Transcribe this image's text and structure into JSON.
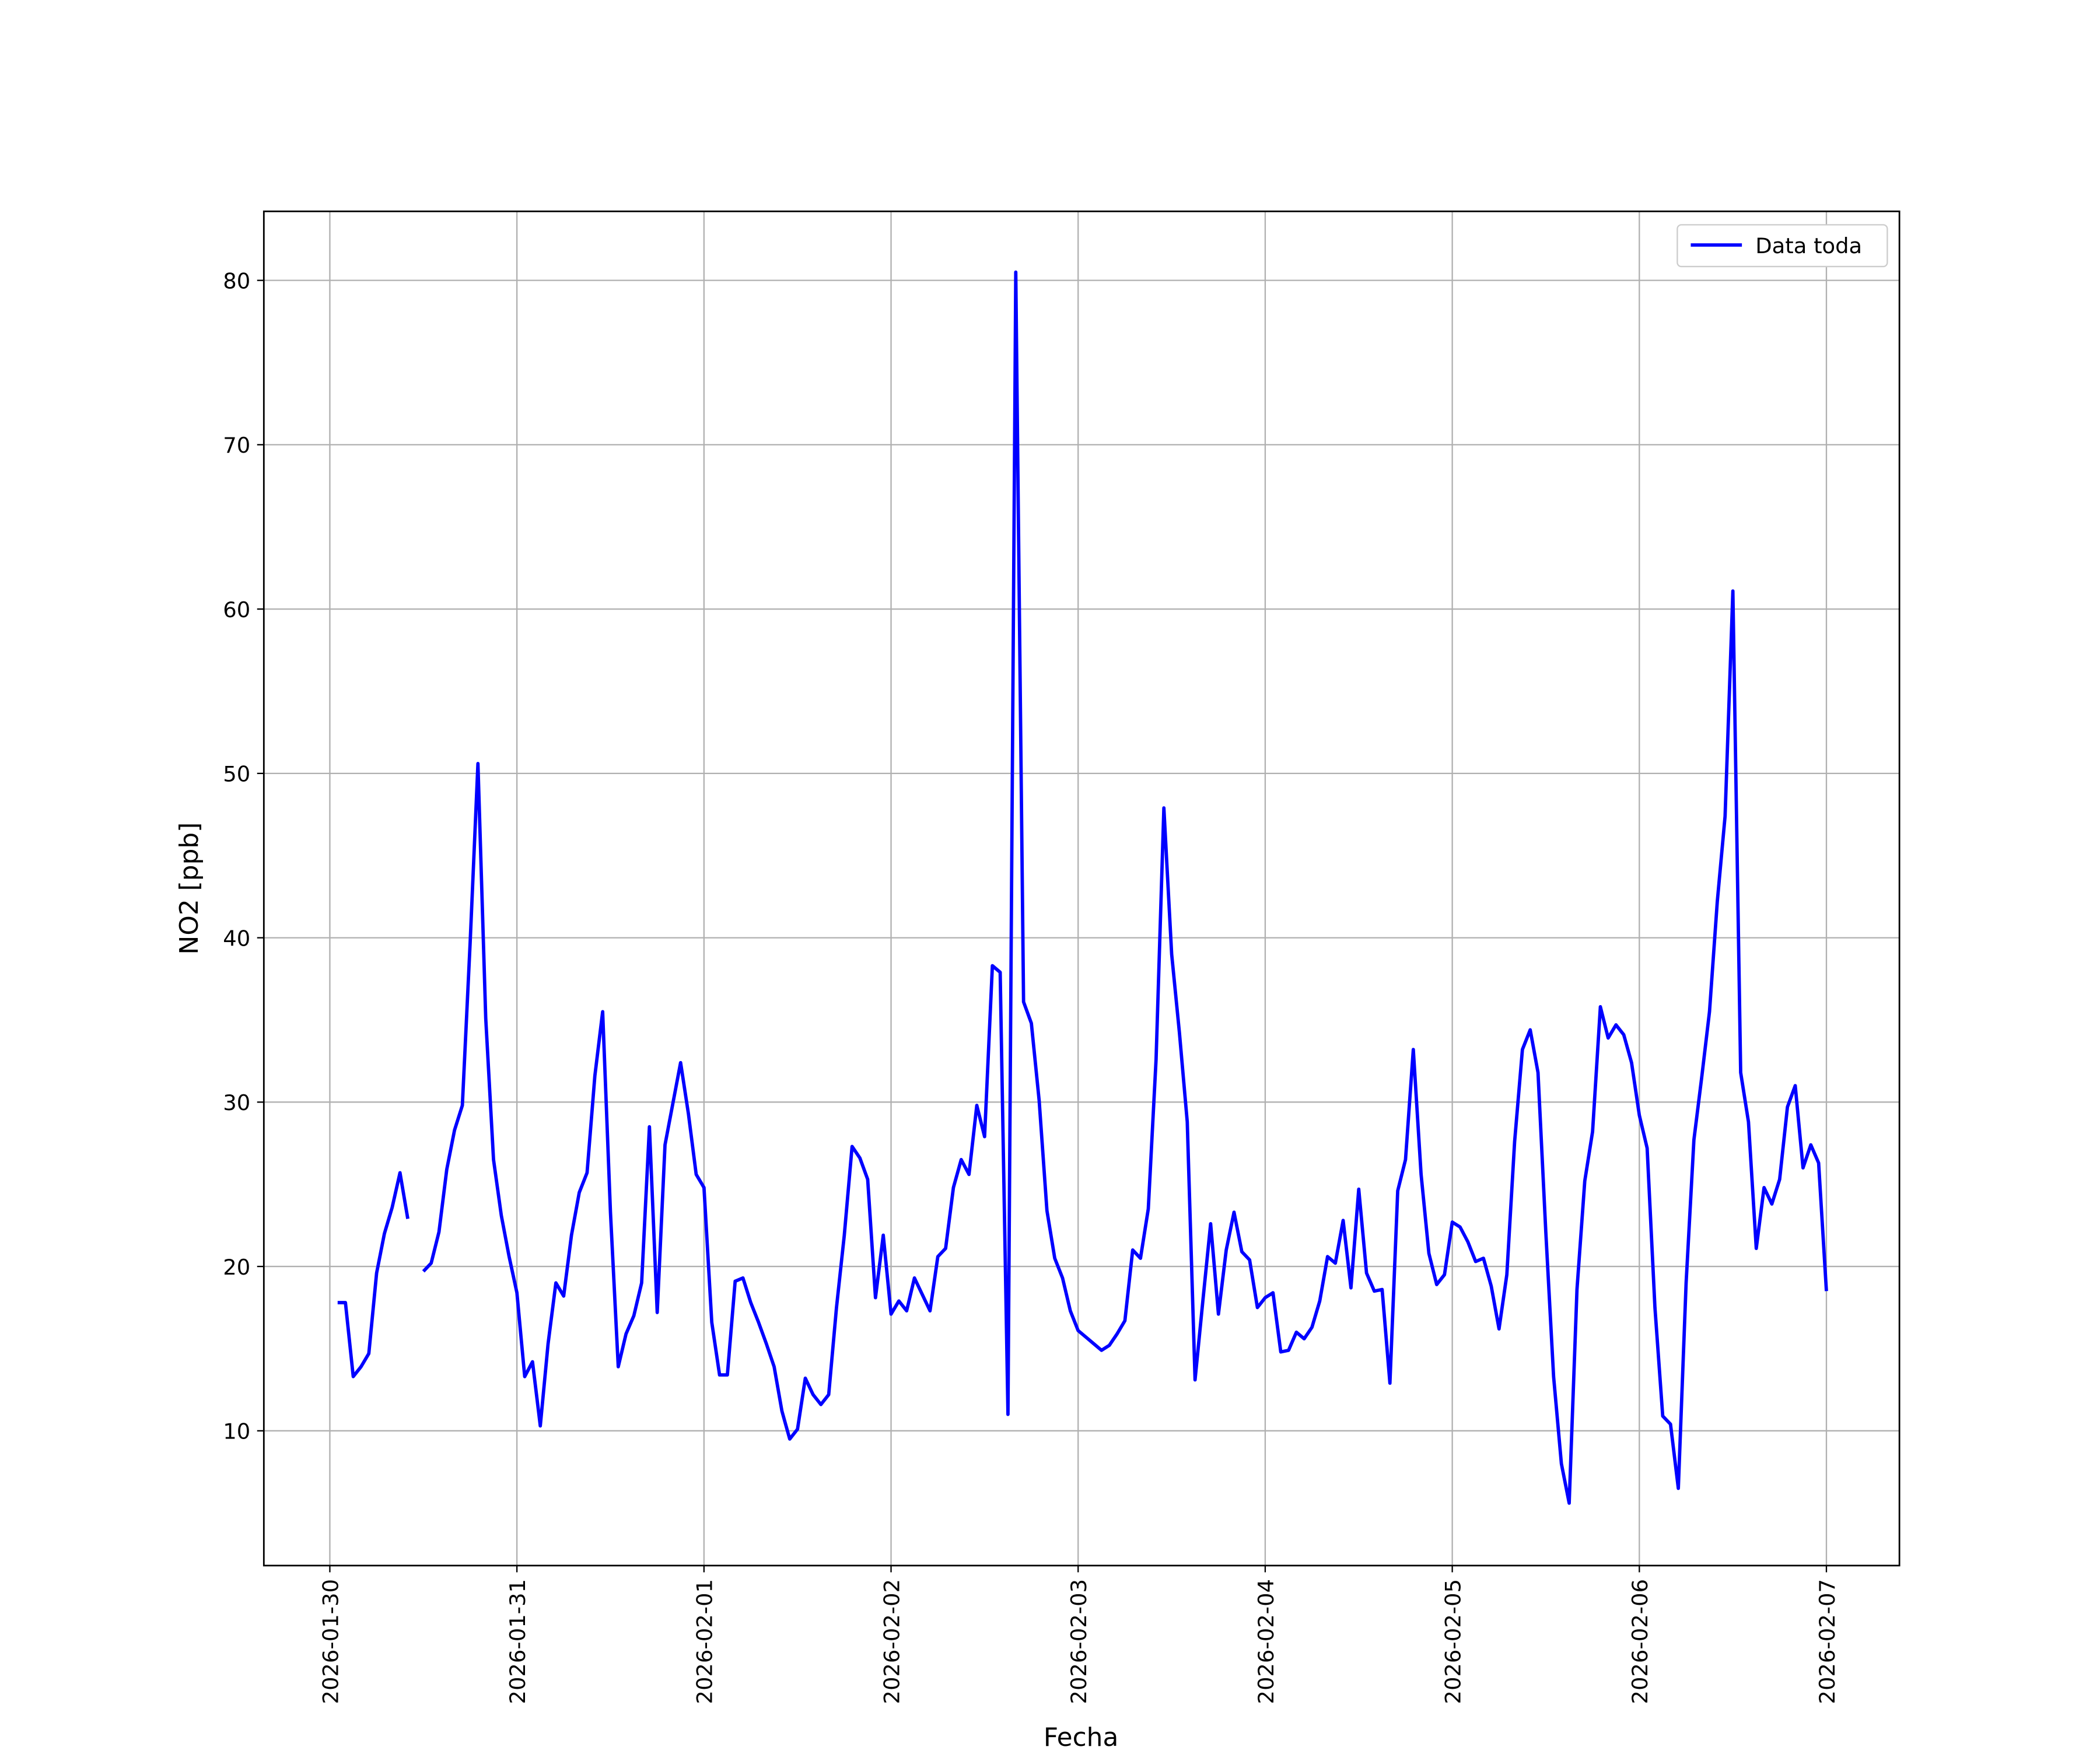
{
  "chart_data": {
    "type": "line",
    "x_label": "Fecha",
    "y_label": "NO2 [ppb]",
    "xlim": [
      "2026-01-29 15:32",
      "2026-02-07 09:22"
    ],
    "xticks": [
      "2026-01-30",
      "2026-01-31",
      "2026-02-01",
      "2026-02-02",
      "2026-02-03",
      "2026-02-04",
      "2026-02-05",
      "2026-02-06",
      "2026-02-07"
    ],
    "ylim": [
      1.8,
      84.2
    ],
    "yticks": [
      10,
      20,
      30,
      40,
      50,
      60,
      70,
      80
    ],
    "grid": true,
    "legend": "upper right",
    "x": [
      "2026-01-30 01:00",
      "2026-01-30 02:00",
      "2026-01-30 03:00",
      "2026-01-30 04:00",
      "2026-01-30 05:00",
      "2026-01-30 06:00",
      "2026-01-30 07:00",
      "2026-01-30 08:00",
      "2026-01-30 09:00",
      "2026-01-30 10:00",
      "2026-01-30 11:00",
      "2026-01-30 12:00",
      "2026-01-30 13:00",
      "2026-01-30 14:00",
      "2026-01-30 15:00",
      "2026-01-30 16:00",
      "2026-01-30 17:00",
      "2026-01-30 18:00",
      "2026-01-30 19:00",
      "2026-01-30 20:00",
      "2026-01-30 21:00",
      "2026-01-30 22:00",
      "2026-01-30 23:00",
      "2026-01-31 00:00",
      "2026-01-31 01:00",
      "2026-01-31 02:00",
      "2026-01-31 03:00",
      "2026-01-31 04:00",
      "2026-01-31 05:00",
      "2026-01-31 06:00",
      "2026-01-31 07:00",
      "2026-01-31 08:00",
      "2026-01-31 09:00",
      "2026-01-31 10:00",
      "2026-01-31 11:00",
      "2026-01-31 12:00",
      "2026-01-31 13:00",
      "2026-01-31 14:00",
      "2026-01-31 15:00",
      "2026-01-31 16:00",
      "2026-01-31 17:00",
      "2026-01-31 18:00",
      "2026-01-31 19:00",
      "2026-01-31 20:00",
      "2026-01-31 21:00",
      "2026-01-31 22:00",
      "2026-01-31 23:00",
      "2026-02-01 00:00",
      "2026-02-01 01:00",
      "2026-02-01 02:00",
      "2026-02-01 03:00",
      "2026-02-01 04:00",
      "2026-02-01 05:00",
      "2026-02-01 06:00",
      "2026-02-01 07:00",
      "2026-02-01 08:00",
      "2026-02-01 09:00",
      "2026-02-01 10:00",
      "2026-02-01 11:00",
      "2026-02-01 12:00",
      "2026-02-01 13:00",
      "2026-02-01 14:00",
      "2026-02-01 15:00",
      "2026-02-01 16:00",
      "2026-02-01 17:00",
      "2026-02-01 18:00",
      "2026-02-01 19:00",
      "2026-02-01 20:00",
      "2026-02-01 21:00",
      "2026-02-01 22:00",
      "2026-02-01 23:00",
      "2026-02-02 00:00",
      "2026-02-02 01:00",
      "2026-02-02 02:00",
      "2026-02-02 03:00",
      "2026-02-02 04:00",
      "2026-02-02 05:00",
      "2026-02-02 06:00",
      "2026-02-02 07:00",
      "2026-02-02 08:00",
      "2026-02-02 09:00",
      "2026-02-02 10:00",
      "2026-02-02 11:00",
      "2026-02-02 12:00",
      "2026-02-02 13:00",
      "2026-02-02 14:00",
      "2026-02-02 15:00",
      "2026-02-02 16:00",
      "2026-02-02 17:00",
      "2026-02-02 18:00",
      "2026-02-02 19:00",
      "2026-02-02 20:00",
      "2026-02-02 21:00",
      "2026-02-02 22:00",
      "2026-02-02 23:00",
      "2026-02-03 00:00",
      "2026-02-03 01:00",
      "2026-02-03 02:00",
      "2026-02-03 03:00",
      "2026-02-03 04:00",
      "2026-02-03 05:00",
      "2026-02-03 06:00",
      "2026-02-03 07:00",
      "2026-02-03 08:00",
      "2026-02-03 09:00",
      "2026-02-03 10:00",
      "2026-02-03 11:00",
      "2026-02-03 12:00",
      "2026-02-03 13:00",
      "2026-02-03 14:00",
      "2026-02-03 15:00",
      "2026-02-03 16:00",
      "2026-02-03 17:00",
      "2026-02-03 18:00",
      "2026-02-03 19:00",
      "2026-02-03 20:00",
      "2026-02-03 21:00",
      "2026-02-03 22:00",
      "2026-02-03 23:00",
      "2026-02-04 00:00",
      "2026-02-04 01:00",
      "2026-02-04 02:00",
      "2026-02-04 03:00",
      "2026-02-04 04:00",
      "2026-02-04 05:00",
      "2026-02-04 06:00",
      "2026-02-04 07:00",
      "2026-02-04 08:00",
      "2026-02-04 09:00",
      "2026-02-04 10:00",
      "2026-02-04 11:00",
      "2026-02-04 12:00",
      "2026-02-04 13:00",
      "2026-02-04 14:00",
      "2026-02-04 15:00",
      "2026-02-04 16:00",
      "2026-02-04 17:00",
      "2026-02-04 18:00",
      "2026-02-04 19:00",
      "2026-02-04 20:00",
      "2026-02-04 21:00",
      "2026-02-04 22:00",
      "2026-02-04 23:00",
      "2026-02-05 00:00",
      "2026-02-05 01:00",
      "2026-02-05 02:00",
      "2026-02-05 03:00",
      "2026-02-05 04:00",
      "2026-02-05 05:00",
      "2026-02-05 06:00",
      "2026-02-05 07:00",
      "2026-02-05 08:00",
      "2026-02-05 09:00",
      "2026-02-05 10:00",
      "2026-02-05 11:00",
      "2026-02-05 12:00",
      "2026-02-05 13:00",
      "2026-02-05 14:00",
      "2026-02-05 15:00",
      "2026-02-05 16:00",
      "2026-02-05 17:00",
      "2026-02-05 18:00",
      "2026-02-05 19:00",
      "2026-02-05 20:00",
      "2026-02-05 21:00",
      "2026-02-05 22:00",
      "2026-02-05 23:00",
      "2026-02-06 00:00",
      "2026-02-06 01:00",
      "2026-02-06 02:00",
      "2026-02-06 03:00",
      "2026-02-06 04:00",
      "2026-02-06 05:00",
      "2026-02-06 06:00",
      "2026-02-06 07:00",
      "2026-02-06 08:00",
      "2026-02-06 09:00",
      "2026-02-06 10:00",
      "2026-02-06 11:00",
      "2026-02-06 12:00",
      "2026-02-06 13:00",
      "2026-02-06 14:00",
      "2026-02-06 15:00",
      "2026-02-06 16:00",
      "2026-02-06 17:00",
      "2026-02-06 18:00",
      "2026-02-06 19:00",
      "2026-02-06 20:00",
      "2026-02-06 21:00",
      "2026-02-06 22:00",
      "2026-02-06 23:00",
      "2026-02-07 00:00"
    ],
    "series": [
      {
        "name": "Data toda",
        "color": "#0000ff",
        "values": [
          17.8,
          17.8,
          13.3,
          13.9,
          14.7,
          19.6,
          22.0,
          23.6,
          25.7,
          22.9,
          null,
          19.7,
          20.2,
          22.1,
          25.9,
          28.3,
          29.8,
          39.7,
          50.6,
          35.1,
          26.5,
          23.1,
          20.6,
          18.4,
          13.3,
          14.2,
          10.3,
          15.3,
          19.0,
          18.2,
          21.9,
          24.5,
          25.7,
          31.6,
          35.5,
          23.3,
          13.9,
          15.9,
          17.0,
          19.0,
          28.5,
          17.2,
          27.4,
          29.9,
          32.4,
          29.3,
          25.6,
          24.8,
          16.6,
          13.4,
          13.4,
          19.1,
          19.3,
          17.8,
          16.6,
          15.3,
          13.9,
          11.2,
          9.5,
          10.1,
          13.2,
          12.2,
          11.6,
          12.2,
          17.5,
          21.9,
          27.3,
          26.6,
          25.3,
          18.1,
          21.9,
          17.1,
          17.9,
          17.3,
          19.3,
          18.3,
          17.3,
          20.6,
          21.1,
          24.8,
          26.5,
          25.6,
          29.8,
          27.9,
          38.3,
          37.9,
          11.0,
          80.5,
          36.1,
          34.8,
          30.1,
          23.4,
          20.5,
          19.3,
          17.3,
          16.1,
          15.7,
          15.3,
          14.9,
          15.2,
          15.9,
          16.7,
          21.0,
          20.5,
          23.5,
          32.6,
          47.9,
          39.0,
          34.2,
          28.8,
          13.1,
          17.9,
          22.6,
          17.1,
          21.0,
          23.3,
          20.9,
          20.4,
          17.5,
          18.1,
          18.4,
          14.8,
          14.9,
          16.0,
          15.6,
          16.3,
          17.9,
          20.6,
          20.2,
          22.8,
          18.7,
          24.7,
          19.6,
          18.5,
          18.6,
          12.9,
          24.6,
          26.5,
          33.2,
          25.6,
          20.8,
          18.9,
          19.5,
          22.7,
          22.4,
          21.5,
          20.3,
          20.5,
          18.8,
          16.2,
          19.5,
          27.6,
          33.2,
          34.4,
          31.8,
          22.1,
          13.3,
          8.0,
          5.6,
          18.6,
          25.2,
          28.2,
          35.8,
          33.9,
          34.7,
          34.1,
          32.4,
          29.2,
          27.2,
          17.5,
          10.9,
          10.4,
          6.5,
          19.0,
          27.7,
          31.5,
          35.5,
          42.2,
          47.4,
          61.1,
          31.8,
          28.8,
          21.1,
          24.8,
          23.8,
          25.3,
          29.7,
          31.0,
          26.0,
          27.4,
          26.3,
          18.5
        ]
      }
    ]
  }
}
